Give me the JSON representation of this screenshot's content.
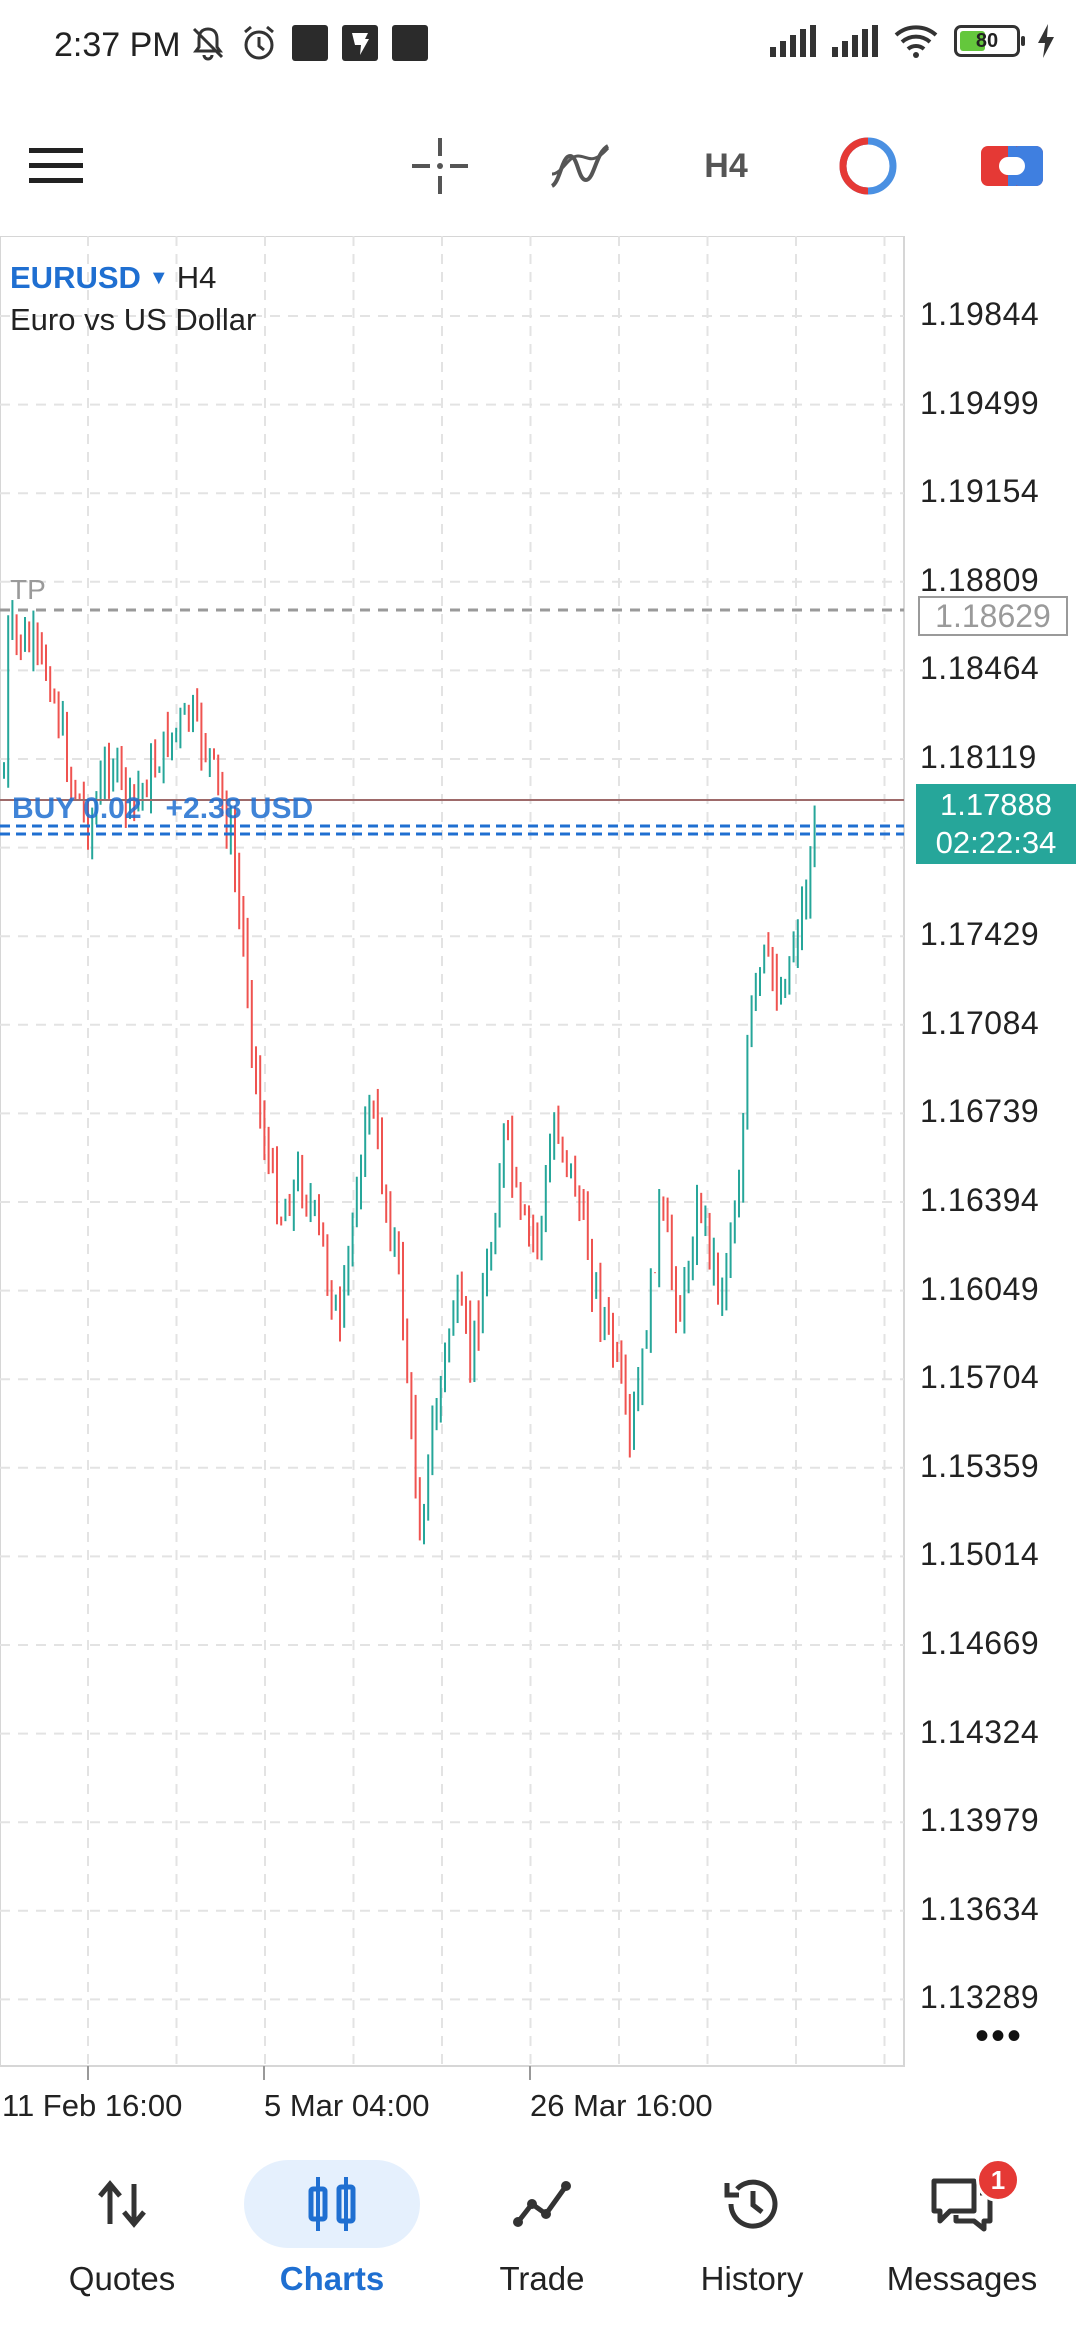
{
  "status_bar": {
    "time": "2:37 PM",
    "battery_level": "80",
    "icons": [
      "mute-icon",
      "alarm-icon",
      "notification-icon",
      "app-icon",
      "notification-icon",
      "signal-icon",
      "signal-icon",
      "wifi-icon",
      "battery-icon",
      "charging-icon"
    ]
  },
  "toolbar": {
    "timeframe": "H4",
    "icons": [
      "menu-icon",
      "crosshair-icon",
      "indicators-icon",
      "timeframe",
      "trade-session-icon",
      "one-click-trading-icon"
    ]
  },
  "chart": {
    "symbol": "EURUSD",
    "timeframe": "H4",
    "description": "Euro vs US Dollar",
    "price_labels": [
      "1.19844",
      "1.19499",
      "1.19154",
      "1.18809",
      "1.18464",
      "1.18119",
      "1.17429",
      "1.17084",
      "1.16739",
      "1.16394",
      "1.16049",
      "1.15704",
      "1.15359",
      "1.15014",
      "1.14669",
      "1.14324",
      "1.13979",
      "1.13634",
      "1.13289"
    ],
    "tp_price": "1.18629",
    "tp_tag": "TP",
    "current_price": "1.17888",
    "countdown": "02:22:34",
    "buy_label": "BUY 0.02",
    "buy_profit": "+2.38 USD",
    "date_labels": [
      "11 Feb 16:00",
      "5 Mar 04:00",
      "26 Mar 16:00"
    ],
    "more": "•••",
    "colors": {
      "bull": "#26a69a",
      "bear": "#ef5350",
      "grid": "#e3e3e3",
      "tp": "#9a9a9a",
      "order": "#1f6fd1",
      "accent": "#1f6fd1"
    }
  },
  "bottom_nav": {
    "items": [
      {
        "label": "Quotes",
        "icon": "quotes-icon"
      },
      {
        "label": "Charts",
        "icon": "charts-icon",
        "active": true
      },
      {
        "label": "Trade",
        "icon": "trade-icon"
      },
      {
        "label": "History",
        "icon": "history-icon"
      },
      {
        "label": "Messages",
        "icon": "messages-icon",
        "badge": "1"
      }
    ]
  }
}
